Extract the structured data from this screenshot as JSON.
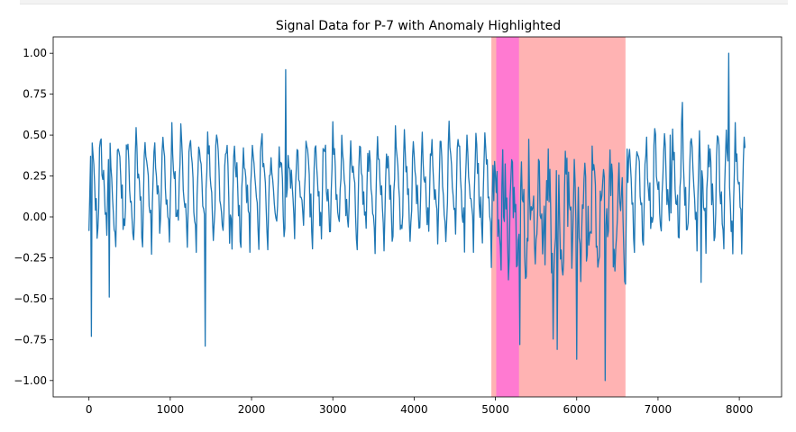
{
  "chart_data": {
    "type": "line",
    "title": "Signal Data for P-7 with Anomaly Highlighted",
    "xlabel": "",
    "ylabel": "",
    "xlim": [
      -440,
      8520
    ],
    "ylim": [
      -1.1,
      1.1
    ],
    "x_ticks": [
      0,
      1000,
      2000,
      3000,
      4000,
      5000,
      6000,
      7000,
      8000
    ],
    "y_ticks": [
      -1.0,
      -0.75,
      -0.5,
      -0.25,
      0.0,
      0.25,
      0.5,
      0.75,
      1.0
    ],
    "grid": false,
    "legend": "none",
    "anomaly_regions": [
      {
        "start": 4950,
        "end": 6600,
        "color": "#ffb3b3"
      },
      {
        "start": 5010,
        "end": 5290,
        "color": "#ff7ad1"
      }
    ],
    "series": [
      {
        "color": "#1f77b4",
        "x_start": 0,
        "x_end": 8070,
        "sample_step": 10,
        "description": "oscillating signal, typically between -0.15 and 0.55 with occasional spikes; a denser, more negative stretch between 5000 and 6600",
        "spikes": [
          {
            "x": 25,
            "y": -0.73
          },
          {
            "x": 250,
            "y": -0.49
          },
          {
            "x": 1430,
            "y": -0.79
          },
          {
            "x": 2420,
            "y": 0.9
          },
          {
            "x": 5300,
            "y": -0.78
          },
          {
            "x": 5760,
            "y": -0.81
          },
          {
            "x": 6000,
            "y": -0.87
          },
          {
            "x": 6350,
            "y": -1.0
          },
          {
            "x": 7530,
            "y": -0.4
          },
          {
            "x": 7870,
            "y": 1.0
          },
          {
            "x": 7150,
            "y": 0.5
          },
          {
            "x": 7300,
            "y": 0.7
          }
        ]
      }
    ]
  }
}
